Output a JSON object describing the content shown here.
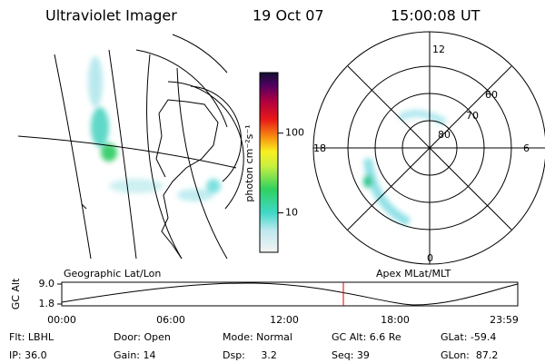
{
  "header": {
    "title": "Ultraviolet Imager",
    "date": "19 Oct 07",
    "time": "15:00:08 UT"
  },
  "colorbar": {
    "label": "photon cm⁻²s⁻¹",
    "log": true,
    "lim": [
      3.2,
      575
    ],
    "ticks": [
      10,
      100
    ]
  },
  "left_panel_label": "Geographic Lat/Lon",
  "right_panel_label": "Apex MLat/MLT",
  "polar": {
    "mlt_labels": [
      "12",
      "18",
      "6",
      "0"
    ],
    "lat_labels": [
      "60",
      "70",
      "80"
    ]
  },
  "altitude_plot": {
    "ylabel": "GC Alt",
    "ylim": [
      1.8,
      9
    ],
    "yticks": [
      {
        "value": 9,
        "label": "9.0"
      },
      1.8
    ],
    "xticks": [
      "00:00",
      "06:00",
      "12:00",
      "18:00",
      "23:59"
    ]
  },
  "info": [
    [
      "Flt: LBHL",
      "Door: Open",
      "Mode: Normal",
      "GC Alt: 6.6 Re",
      "GLat: -59.4"
    ],
    [
      "IP: 36.0",
      "Gain: 14",
      "Dsp:     3.2",
      "Seq: 39",
      "GLon:  87.2"
    ]
  ]
}
